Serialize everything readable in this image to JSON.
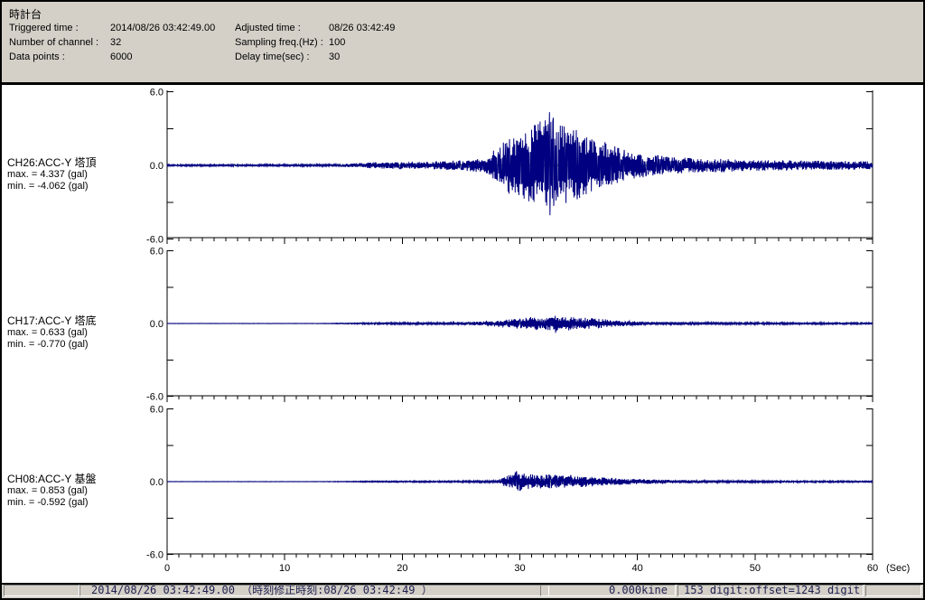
{
  "window": {
    "title": "時計台"
  },
  "header": {
    "fields": [
      {
        "label": "Triggered time :",
        "value": "2014/08/26 03:42:49.00"
      },
      {
        "label": "Adjusted time :",
        "value": "08/26 03:42:49"
      },
      {
        "label": "Number of channel :",
        "value": "32"
      },
      {
        "label": "Sampling freq.(Hz) :",
        "value": "100"
      },
      {
        "label": "Data points :",
        "value": "6000"
      },
      {
        "label": "Delay time(sec) :",
        "value": "30"
      }
    ]
  },
  "chart_data": {
    "type": "line",
    "x_label": "(Sec)",
    "x_ticks": [
      0,
      10,
      20,
      30,
      40,
      50,
      60
    ],
    "x_range": [
      0,
      60
    ],
    "y_range": [
      -6.0,
      6.0
    ],
    "y_ticks": [
      {
        "v": 6,
        "label": "6.0"
      },
      {
        "v": 3,
        "label": ""
      },
      {
        "v": 0,
        "label": "0.0"
      },
      {
        "v": -3,
        "label": ""
      },
      {
        "v": -6,
        "label": "-6.0"
      }
    ],
    "grid": false,
    "colors": {
      "waveform": "#000080",
      "baseline": "#008000",
      "axis": "#000000"
    },
    "channels": [
      {
        "label": "CH26:ACC-Y 塔頂",
        "max_label": "max. = 4.337 (gal)",
        "min_label": "min. = -4.062 (gal)",
        "max": 4.337,
        "min": -4.062,
        "seed": 101,
        "envelope": [
          [
            0,
            0.07
          ],
          [
            8,
            0.08
          ],
          [
            14,
            0.09
          ],
          [
            16,
            0.16
          ],
          [
            17,
            0.24
          ],
          [
            19,
            0.28
          ],
          [
            21,
            0.3
          ],
          [
            23,
            0.33
          ],
          [
            25,
            0.42
          ],
          [
            26,
            0.5
          ],
          [
            27,
            0.65
          ],
          [
            28,
            1.4
          ],
          [
            29,
            2.3
          ],
          [
            30,
            2.5
          ],
          [
            31,
            3.1
          ],
          [
            32,
            3.9
          ],
          [
            32.5,
            4.34
          ],
          [
            33,
            4.0
          ],
          [
            33.5,
            3.5
          ],
          [
            34.5,
            3.0
          ],
          [
            35.5,
            2.6
          ],
          [
            36.5,
            2.2
          ],
          [
            37.5,
            1.8
          ],
          [
            38.5,
            1.4
          ],
          [
            40,
            1.05
          ],
          [
            42,
            0.8
          ],
          [
            44,
            0.62
          ],
          [
            46,
            0.55
          ],
          [
            48,
            0.5
          ],
          [
            50,
            0.45
          ],
          [
            53,
            0.4
          ],
          [
            56,
            0.38
          ],
          [
            60,
            0.33
          ]
        ]
      },
      {
        "label": "CH17:ACC-Y 塔底",
        "max_label": "max. = 0.633 (gal)",
        "min_label": "min. = -0.770 (gal)",
        "max": 0.633,
        "min": -0.77,
        "seed": 202,
        "envelope": [
          [
            0,
            0.015
          ],
          [
            13,
            0.018
          ],
          [
            15,
            0.04
          ],
          [
            17,
            0.07
          ],
          [
            20,
            0.09
          ],
          [
            23,
            0.1
          ],
          [
            26,
            0.13
          ],
          [
            28,
            0.22
          ],
          [
            29,
            0.32
          ],
          [
            30,
            0.45
          ],
          [
            31,
            0.55
          ],
          [
            32,
            0.5
          ],
          [
            33,
            0.63
          ],
          [
            34,
            0.58
          ],
          [
            35,
            0.5
          ],
          [
            36,
            0.45
          ],
          [
            37,
            0.38
          ],
          [
            38,
            0.28
          ],
          [
            39,
            0.22
          ],
          [
            40,
            0.18
          ],
          [
            42,
            0.14
          ],
          [
            44,
            0.12
          ],
          [
            47,
            0.1
          ],
          [
            50,
            0.09
          ],
          [
            55,
            0.08
          ],
          [
            60,
            0.07
          ]
        ]
      },
      {
        "label": "CH08:ACC-Y 基盤",
        "max_label": "max. = 0.853 (gal)",
        "min_label": "min. = -0.592 (gal)",
        "max": 0.853,
        "min": -0.592,
        "seed": 303,
        "envelope": [
          [
            0,
            0.015
          ],
          [
            13,
            0.018
          ],
          [
            15,
            0.03
          ],
          [
            17,
            0.05
          ],
          [
            20,
            0.06
          ],
          [
            24,
            0.07
          ],
          [
            27,
            0.09
          ],
          [
            28,
            0.12
          ],
          [
            29,
            0.5
          ],
          [
            29.7,
            0.85
          ],
          [
            30.5,
            0.65
          ],
          [
            31.5,
            0.55
          ],
          [
            32.5,
            0.6
          ],
          [
            33.5,
            0.5
          ],
          [
            34.5,
            0.55
          ],
          [
            35.5,
            0.45
          ],
          [
            36.5,
            0.38
          ],
          [
            37.5,
            0.32
          ],
          [
            38.5,
            0.28
          ],
          [
            40,
            0.22
          ],
          [
            42,
            0.16
          ],
          [
            44,
            0.13
          ],
          [
            46,
            0.11
          ],
          [
            49,
            0.09
          ],
          [
            52,
            0.08
          ],
          [
            56,
            0.07
          ],
          [
            60,
            0.06
          ]
        ]
      }
    ]
  },
  "status_bar": {
    "timestamp": "2014/08/26 03:42:49.00  （時刻修正時刻:08/26 03:42:49  ）",
    "kine": "0.000kine",
    "digit": "153 digit:offset=1243 digit"
  }
}
